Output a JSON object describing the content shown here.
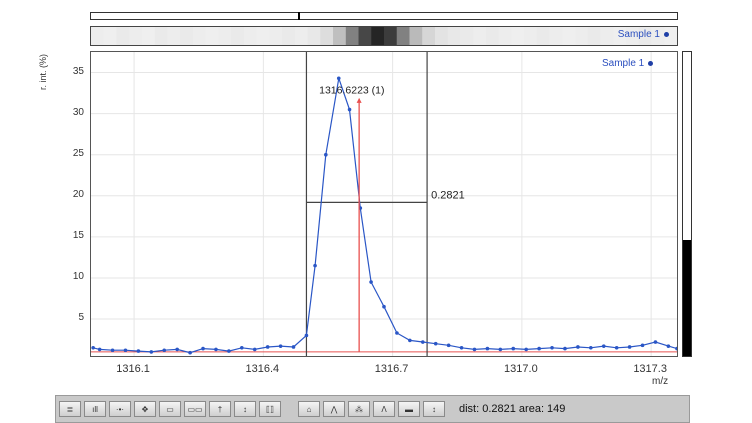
{
  "colors": {
    "trace": "#2a56c6",
    "marker": "#e8504f",
    "box": "#444444",
    "sample_dot": "#1f3fa6"
  },
  "overview": {
    "sample_label": "Sample 1"
  },
  "plot": {
    "legend_label": "Sample 1",
    "peak_label": "1316.6223 (1)",
    "dist_label": "0.2821",
    "xlabel": "m/z",
    "ylabel": "r. int. (%)"
  },
  "chart_data": {
    "type": "line",
    "xlabel": "m/z",
    "ylabel": "r. int. (%)",
    "xlim": [
      1316.0,
      1317.36
    ],
    "ylim": [
      0.5,
      37.5
    ],
    "x_ticks": [
      "1316.1",
      "1316.4",
      "1316.7",
      "1317.0",
      "1317.3"
    ],
    "y_ticks": [
      "5",
      "10",
      "15",
      "20",
      "25",
      "30",
      "35"
    ],
    "series": [
      {
        "name": "Sample 1",
        "x": [
          1316.005,
          1316.02,
          1316.05,
          1316.08,
          1316.11,
          1316.14,
          1316.17,
          1316.2,
          1316.23,
          1316.26,
          1316.29,
          1316.32,
          1316.35,
          1316.38,
          1316.41,
          1316.44,
          1316.47,
          1316.5,
          1316.52,
          1316.545,
          1316.575,
          1316.6,
          1316.625,
          1316.65,
          1316.68,
          1316.71,
          1316.74,
          1316.77,
          1316.8,
          1316.83,
          1316.86,
          1316.89,
          1316.92,
          1316.95,
          1316.98,
          1317.01,
          1317.04,
          1317.07,
          1317.1,
          1317.13,
          1317.16,
          1317.19,
          1317.22,
          1317.25,
          1317.28,
          1317.31,
          1317.34,
          1317.36
        ],
        "y": [
          1.5,
          1.3,
          1.2,
          1.2,
          1.1,
          1.0,
          1.2,
          1.3,
          0.9,
          1.4,
          1.3,
          1.1,
          1.5,
          1.3,
          1.6,
          1.7,
          1.6,
          3.0,
          11.5,
          25.0,
          34.3,
          30.5,
          18.5,
          9.5,
          6.5,
          3.3,
          2.4,
          2.2,
          2.0,
          1.8,
          1.5,
          1.3,
          1.4,
          1.3,
          1.4,
          1.3,
          1.4,
          1.5,
          1.4,
          1.6,
          1.5,
          1.7,
          1.5,
          1.6,
          1.8,
          2.2,
          1.7,
          1.4
        ]
      }
    ],
    "peak_marker": {
      "x": 1316.6223,
      "y": 34.3
    },
    "noise_level": 1.0,
    "measure_box": {
      "x_min": 1316.5,
      "x_max": 1316.78,
      "y_split": 19.2
    },
    "heat_strip_levels": [
      0.08,
      0.07,
      0.09,
      0.08,
      0.07,
      0.09,
      0.08,
      0.09,
      0.08,
      0.07,
      0.08,
      0.09,
      0.08,
      0.07,
      0.08,
      0.09,
      0.08,
      0.1,
      0.15,
      0.28,
      0.55,
      0.8,
      0.95,
      0.85,
      0.55,
      0.3,
      0.18,
      0.12,
      0.1,
      0.09,
      0.08,
      0.09,
      0.08,
      0.07,
      0.08,
      0.09,
      0.08,
      0.07,
      0.08,
      0.09,
      0.08,
      0.07,
      0.08,
      0.09,
      0.08,
      0.07
    ]
  },
  "right_scroll": {
    "fill_fraction": 0.38
  },
  "toolbar": {
    "buttons_left": [
      {
        "name": "spectrum-view-button",
        "icon": "spectrum-list-icon",
        "glyph": "≣"
      },
      {
        "name": "peak-list-button",
        "icon": "bar-peaks-icon",
        "glyph": "ıll"
      },
      {
        "name": "points-mode-button",
        "icon": "points-icon",
        "glyph": "·•·"
      },
      {
        "name": "center-mode-button",
        "icon": "crosshair-icon",
        "glyph": "✥"
      },
      {
        "name": "calibrate-button",
        "icon": "calibrate-icon",
        "glyph": "▭"
      },
      {
        "name": "range-button",
        "icon": "range-icon",
        "glyph": "▭▭"
      },
      {
        "name": "label-tool-button",
        "icon": "label-icon",
        "glyph": "†"
      },
      {
        "name": "vertical-zoom-button",
        "icon": "vertical-arrows-icon",
        "glyph": "↕"
      },
      {
        "name": "horizontal-zoom-button",
        "icon": "bracket-icon",
        "glyph": "⟦⟧"
      }
    ],
    "buttons_right": [
      {
        "name": "peak-pick-button",
        "icon": "peak-pick-icon",
        "glyph": "⌂"
      },
      {
        "name": "peak-shape-button",
        "icon": "peak-shape-icon",
        "glyph": "⋀"
      },
      {
        "name": "isotope-button",
        "icon": "isotope-icon",
        "glyph": "⁂"
      },
      {
        "name": "annotate-peak-button",
        "icon": "annotate-icon",
        "glyph": "Λ"
      },
      {
        "name": "measure-range-button",
        "icon": "measure-icon",
        "glyph": "▬"
      },
      {
        "name": "area-button",
        "icon": "area-icon",
        "glyph": "↕"
      }
    ],
    "status": "dist: 0.2821   area: 149"
  }
}
